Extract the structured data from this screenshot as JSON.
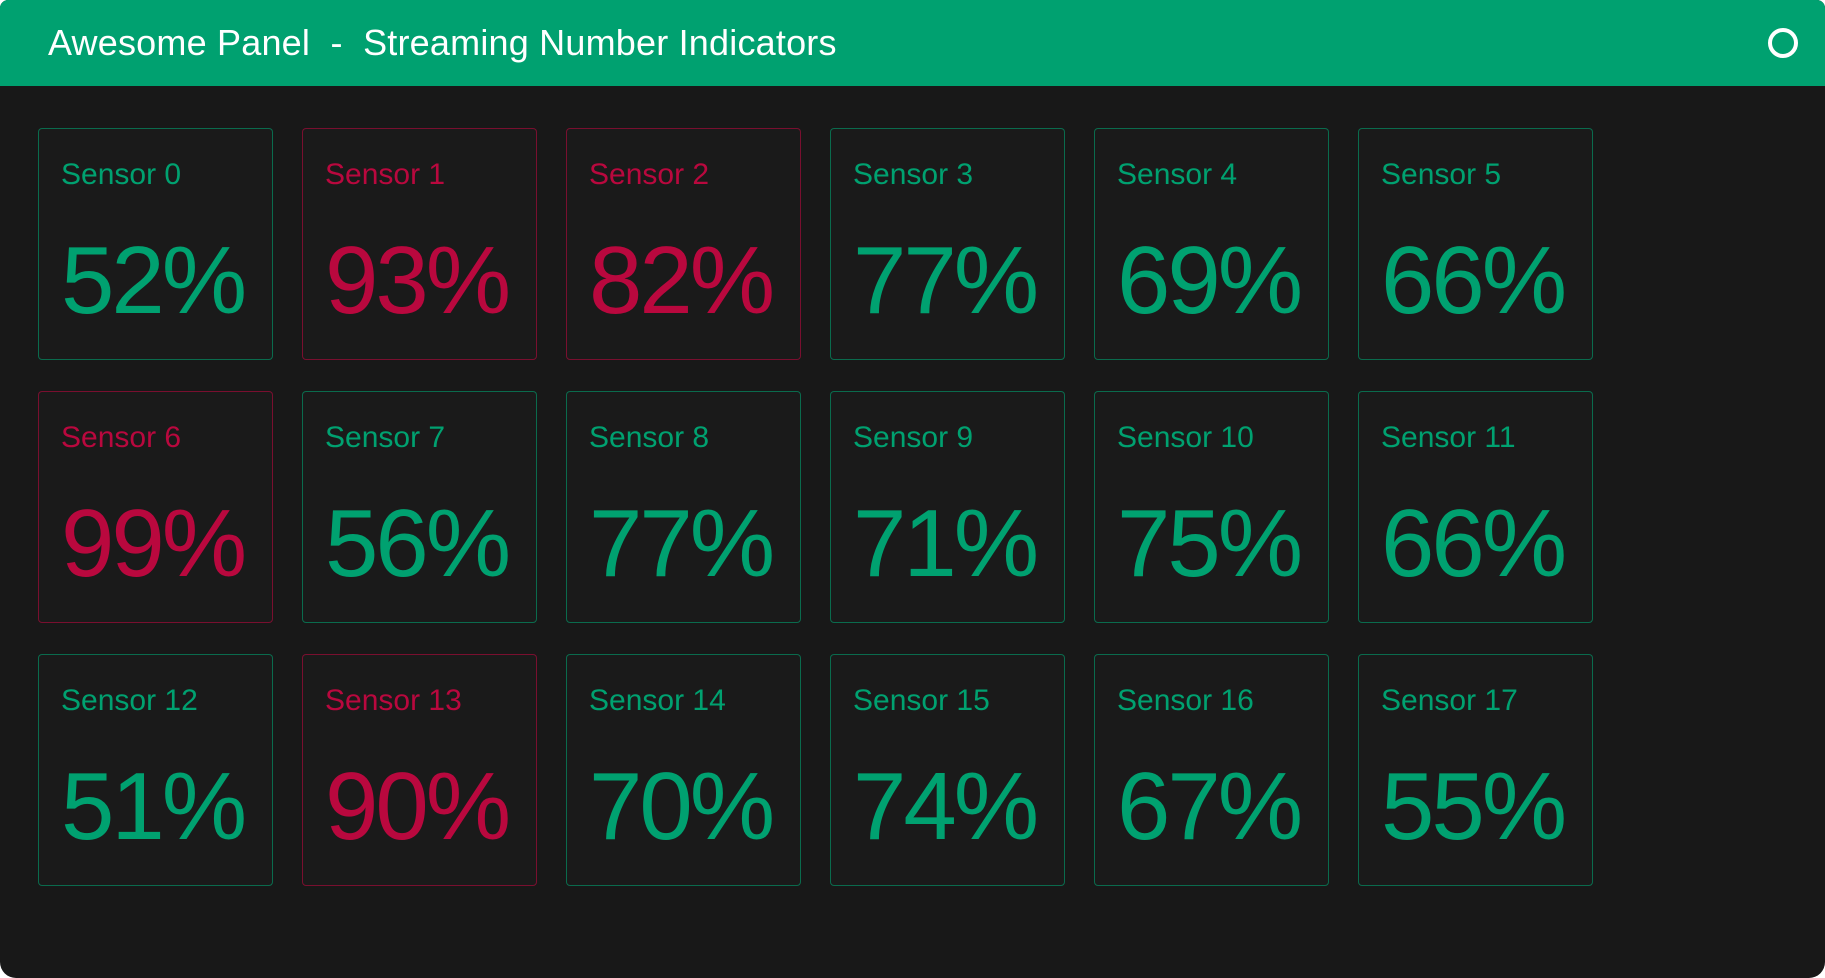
{
  "header": {
    "title": "Awesome Panel  -  Streaming Number Indicators",
    "background": "#00A170",
    "text_color": "#FFFFFF",
    "busy_indicator_icon": "circle-outline"
  },
  "colors": {
    "green": "#00A170",
    "red": "#B9083E",
    "page_bg": "#181818",
    "card_bg": "#1A1A1A",
    "outer_bg": "#FFFFFF"
  },
  "indicators": [
    {
      "label": "Sensor 0",
      "value": "52%",
      "number": 52,
      "status": "green"
    },
    {
      "label": "Sensor 1",
      "value": "93%",
      "number": 93,
      "status": "red"
    },
    {
      "label": "Sensor 2",
      "value": "82%",
      "number": 82,
      "status": "red"
    },
    {
      "label": "Sensor 3",
      "value": "77%",
      "number": 77,
      "status": "green"
    },
    {
      "label": "Sensor 4",
      "value": "69%",
      "number": 69,
      "status": "green"
    },
    {
      "label": "Sensor 5",
      "value": "66%",
      "number": 66,
      "status": "green"
    },
    {
      "label": "Sensor 6",
      "value": "99%",
      "number": 99,
      "status": "red"
    },
    {
      "label": "Sensor 7",
      "value": "56%",
      "number": 56,
      "status": "green"
    },
    {
      "label": "Sensor 8",
      "value": "77%",
      "number": 77,
      "status": "green"
    },
    {
      "label": "Sensor 9",
      "value": "71%",
      "number": 71,
      "status": "green"
    },
    {
      "label": "Sensor 10",
      "value": "75%",
      "number": 75,
      "status": "green"
    },
    {
      "label": "Sensor 11",
      "value": "66%",
      "number": 66,
      "status": "green"
    },
    {
      "label": "Sensor 12",
      "value": "51%",
      "number": 51,
      "status": "green"
    },
    {
      "label": "Sensor 13",
      "value": "90%",
      "number": 90,
      "status": "red"
    },
    {
      "label": "Sensor 14",
      "value": "70%",
      "number": 70,
      "status": "green"
    },
    {
      "label": "Sensor 15",
      "value": "74%",
      "number": 74,
      "status": "green"
    },
    {
      "label": "Sensor 16",
      "value": "67%",
      "number": 67,
      "status": "green"
    },
    {
      "label": "Sensor 17",
      "value": "55%",
      "number": 55,
      "status": "green"
    }
  ]
}
